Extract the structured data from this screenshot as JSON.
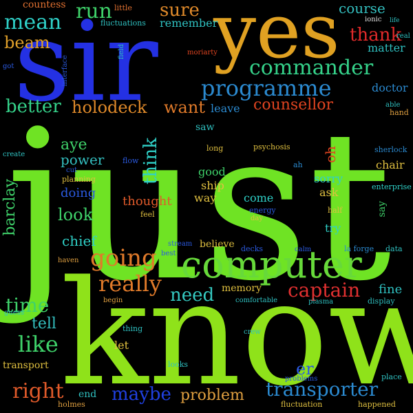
{
  "words": [
    {
      "text": "just",
      "color": "#6fe324"
    },
    {
      "text": "know",
      "color": "#8fe21a"
    },
    {
      "text": "sir",
      "color": "#2431e3"
    },
    {
      "text": "yes",
      "color": "#e0a122"
    },
    {
      "text": "computer",
      "color": "#67d93a"
    },
    {
      "text": "commander",
      "color": "#35d28a"
    },
    {
      "text": "programme",
      "color": "#2b8ad0"
    },
    {
      "text": "mean",
      "color": "#2fd1c8"
    },
    {
      "text": "thank",
      "color": "#e02a2a"
    },
    {
      "text": "course",
      "color": "#34c0c0"
    },
    {
      "text": "sure",
      "color": "#e08a2a"
    },
    {
      "text": "run",
      "color": "#3fd26a"
    },
    {
      "text": "beam",
      "color": "#e0a02a"
    },
    {
      "text": "countess",
      "color": "#e07030"
    },
    {
      "text": "remember",
      "color": "#2fc0c0"
    },
    {
      "text": "holodeck",
      "color": "#e08a2a"
    },
    {
      "text": "want",
      "color": "#e07a2a"
    },
    {
      "text": "better",
      "color": "#35d28a"
    },
    {
      "text": "counsellor",
      "color": "#e04420"
    },
    {
      "text": "leave",
      "color": "#2b8ad0"
    },
    {
      "text": "going",
      "color": "#e07a2a"
    },
    {
      "text": "really",
      "color": "#e07a2a"
    },
    {
      "text": "captain",
      "color": "#e03030"
    },
    {
      "text": "need",
      "color": "#35c8c0"
    },
    {
      "text": "time",
      "color": "#3fd26a"
    },
    {
      "text": "like",
      "color": "#3fd26a"
    },
    {
      "text": "tell",
      "color": "#34c0c0"
    },
    {
      "text": "right",
      "color": "#e05a2a"
    },
    {
      "text": "maybe",
      "color": "#2040e0"
    },
    {
      "text": "problem",
      "color": "#e0a040"
    },
    {
      "text": "transporter",
      "color": "#2b8ad0"
    },
    {
      "text": "aye",
      "color": "#3fd26a"
    },
    {
      "text": "power",
      "color": "#34c0c0"
    },
    {
      "text": "look",
      "color": "#3fd26a"
    },
    {
      "text": "doing",
      "color": "#2b5ae0"
    },
    {
      "text": "chief",
      "color": "#2fd1c8"
    },
    {
      "text": "thought",
      "color": "#e05a2a"
    },
    {
      "text": "ship",
      "color": "#e0c040"
    },
    {
      "text": "good",
      "color": "#3fd26a"
    },
    {
      "text": "way",
      "color": "#e0c040"
    },
    {
      "text": "come",
      "color": "#2fd1c8"
    },
    {
      "text": "sorry",
      "color": "#2fd1c8"
    },
    {
      "text": "ask",
      "color": "#e0c040"
    },
    {
      "text": "try",
      "color": "#2fd1c8"
    },
    {
      "text": "believe",
      "color": "#e0c040"
    },
    {
      "text": "memory",
      "color": "#e0c040"
    },
    {
      "text": "chair",
      "color": "#e0c040"
    },
    {
      "text": "fine",
      "color": "#2fc0c0"
    },
    {
      "text": "doctor",
      "color": "#2b8ad0"
    },
    {
      "text": "matter",
      "color": "#2fc0c0"
    },
    {
      "text": "saw",
      "color": "#2fc0c0"
    },
    {
      "text": "long",
      "color": "#e0c040"
    },
    {
      "text": "psychosis",
      "color": "#e0c040"
    },
    {
      "text": "oh",
      "color": "#e04420"
    },
    {
      "text": "er",
      "color": "#2b5ae0"
    },
    {
      "text": "energy",
      "color": "#2b5ae0"
    },
    {
      "text": "day",
      "color": "#e0c040"
    },
    {
      "text": "feel",
      "color": "#e0c040"
    },
    {
      "text": "half",
      "color": "#e0c040"
    },
    {
      "text": "enterprise",
      "color": "#2fd1c8"
    },
    {
      "text": "sherlock",
      "color": "#2b8ad0"
    },
    {
      "text": "able",
      "color": "#2fc0c0"
    },
    {
      "text": "hand",
      "color": "#e0a040"
    },
    {
      "text": "ionic",
      "color": "#e0e0e0"
    },
    {
      "text": "life",
      "color": "#2fc0c0"
    },
    {
      "text": "real",
      "color": "#2fc0c0"
    },
    {
      "text": "little",
      "color": "#e07030"
    },
    {
      "text": "fluctuations",
      "color": "#2fc0c0"
    },
    {
      "text": "moriarty",
      "color": "#e04420"
    },
    {
      "text": "got",
      "color": "#2b5ae0"
    },
    {
      "text": "interface",
      "color": "#2b5ae0"
    },
    {
      "text": "field",
      "color": "#2fc0c0"
    },
    {
      "text": "create",
      "color": "#2fc0c0"
    },
    {
      "text": "flow",
      "color": "#2b5ae0"
    },
    {
      "text": "cut",
      "color": "#2b5ae0"
    },
    {
      "text": "planning",
      "color": "#e0c040"
    },
    {
      "text": "ah",
      "color": "#2b8ad0"
    },
    {
      "text": "barclay",
      "color": "#3fd26a"
    },
    {
      "text": "think",
      "color": "#2fd1c8"
    },
    {
      "text": "say",
      "color": "#3fd26a"
    },
    {
      "text": "stream",
      "color": "#2b5ae0"
    },
    {
      "text": "best",
      "color": "#2b5ae0"
    },
    {
      "text": "decks",
      "color": "#2b5ae0"
    },
    {
      "text": "calm",
      "color": "#2b5ae0"
    },
    {
      "text": "la forge",
      "color": "#2b8ad0"
    },
    {
      "text": "data",
      "color": "#2fc0c0"
    },
    {
      "text": "haven",
      "color": "#e0a040"
    },
    {
      "text": "begin",
      "color": "#e0a040"
    },
    {
      "text": "comfortable",
      "color": "#2fc0c0"
    },
    {
      "text": "plasma",
      "color": "#2fc0c0"
    },
    {
      "text": "display",
      "color": "#2fc0c0"
    },
    {
      "text": "guess",
      "color": "#2fc0c0"
    },
    {
      "text": "thing",
      "color": "#2fc0c0"
    },
    {
      "text": "let",
      "color": "#e0c040"
    },
    {
      "text": "crew",
      "color": "#2fc0c0"
    },
    {
      "text": "transport",
      "color": "#e0c040"
    },
    {
      "text": "looks",
      "color": "#2fc0c0"
    },
    {
      "text": "problems",
      "color": "#2b5ae0"
    },
    {
      "text": "place",
      "color": "#2fc0c0"
    },
    {
      "text": "end",
      "color": "#2fc0c0"
    },
    {
      "text": "holmes",
      "color": "#e0a040"
    },
    {
      "text": "fluctuation",
      "color": "#e0c040"
    },
    {
      "text": "happened",
      "color": "#e0c040"
    }
  ]
}
